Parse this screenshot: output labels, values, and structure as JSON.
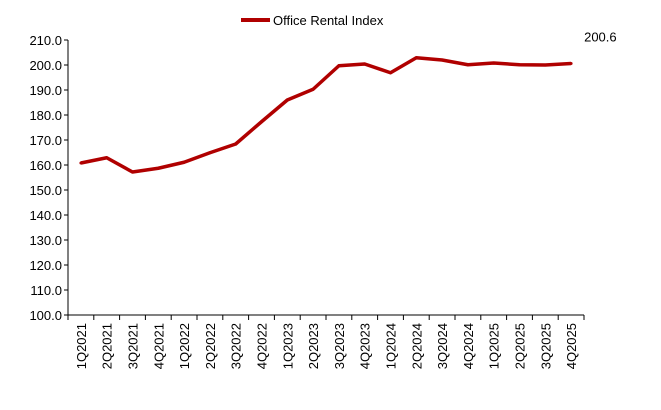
{
  "chart_data": {
    "type": "line",
    "title": "",
    "xlabel": "",
    "ylabel": "",
    "ylim": [
      100,
      210
    ],
    "yticks": [
      "100.0",
      "110.0",
      "120.0",
      "130.0",
      "140.0",
      "150.0",
      "160.0",
      "170.0",
      "180.0",
      "190.0",
      "200.0",
      "210.0"
    ],
    "grid": false,
    "legend_position": "top",
    "categories": [
      "1Q2021",
      "2Q2021",
      "3Q2021",
      "4Q2021",
      "1Q2022",
      "2Q2022",
      "3Q2022",
      "4Q2022",
      "1Q2023",
      "2Q2023",
      "3Q2023",
      "4Q2023",
      "1Q2024",
      "2Q2024",
      "3Q2024",
      "4Q2024",
      "1Q2025",
      "2Q2025",
      "3Q2025",
      "4Q2025"
    ],
    "series": [
      {
        "name": "Office Rental Index",
        "color": "#B00000",
        "values": [
          160.8,
          162.9,
          157.2,
          158.7,
          161.1,
          164.9,
          168.4,
          177.3,
          186.0,
          190.3,
          199.7,
          200.4,
          196.9,
          202.9,
          202.0,
          200.1,
          200.8,
          200.1,
          200.0,
          200.6
        ]
      }
    ],
    "annotations": [
      {
        "text": "200.6",
        "category": "4Q2025"
      }
    ]
  }
}
